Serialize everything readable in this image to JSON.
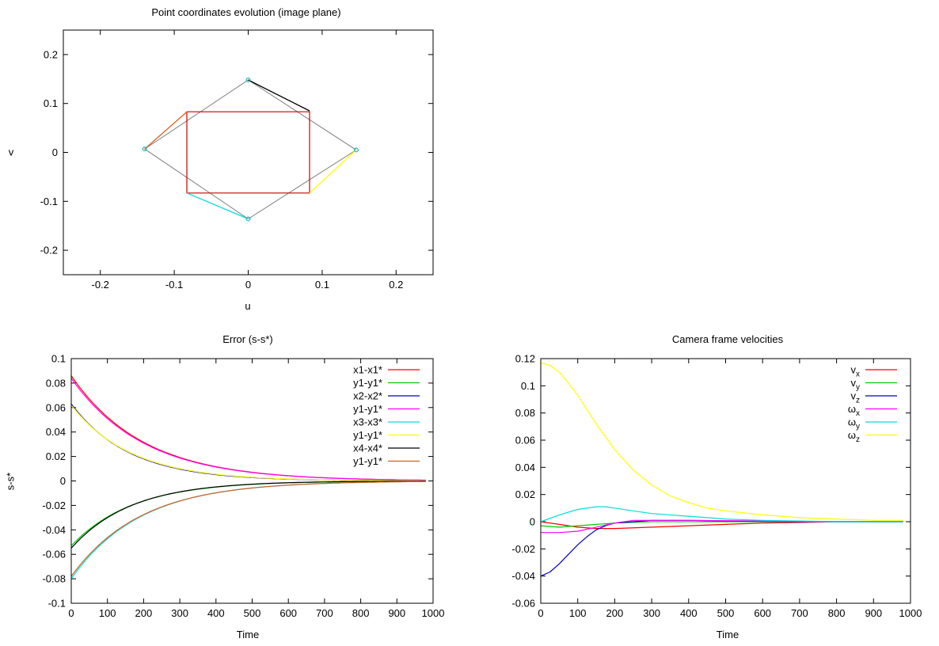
{
  "chart_data": [
    {
      "id": "image-plane",
      "type": "line",
      "title": "Point coordinates evolution (image plane)",
      "xlabel": "u",
      "ylabel": "v",
      "xlim": [
        -0.25,
        0.25
      ],
      "ylim": [
        -0.25,
        0.25
      ],
      "xticks": [
        -0.2,
        -0.1,
        0,
        0.1,
        0.2
      ],
      "yticks": [
        -0.2,
        -0.1,
        0,
        0.1,
        0.2
      ],
      "xtick_labels": [
        "-0.2",
        "-0.1",
        "0",
        "0.1",
        "0.2"
      ],
      "ytick_labels": [
        "-0.2",
        "-0.1",
        "0",
        "0.1",
        "0.2"
      ],
      "legend": "none",
      "initial_points": [
        [
          0.0,
          0.148
        ],
        [
          0.146,
          0.005
        ],
        [
          0.0,
          -0.136
        ],
        [
          -0.14,
          0.007
        ]
      ],
      "desired_points": [
        [
          -0.083,
          0.083
        ],
        [
          0.083,
          0.083
        ],
        [
          0.083,
          -0.083
        ],
        [
          -0.083,
          -0.083
        ]
      ],
      "colors": {
        "initial": "#808080",
        "desired": "#cc0000",
        "marker": "#22bbbb"
      },
      "trajectories": [
        {
          "color": "#000000",
          "points": [
            [
              0.0,
              0.148
            ],
            [
              0.083,
              0.085
            ]
          ]
        },
        {
          "color": "#ffff00",
          "points": [
            [
              0.146,
              0.005
            ],
            [
              0.083,
              -0.083
            ]
          ]
        },
        {
          "color": "#00dddd",
          "points": [
            [
              0.0,
              -0.136
            ],
            [
              -0.083,
              -0.083
            ]
          ]
        },
        {
          "color": "#e06020",
          "points": [
            [
              -0.14,
              0.007
            ],
            [
              -0.083,
              0.083
            ]
          ]
        }
      ]
    },
    {
      "id": "error",
      "type": "line",
      "title": "Error (s-s*)",
      "xlabel": "Time",
      "ylabel": "s-s*",
      "xlim": [
        0,
        1000
      ],
      "ylim": [
        -0.1,
        0.1
      ],
      "xticks": [
        0,
        100,
        200,
        300,
        400,
        500,
        600,
        700,
        800,
        900,
        1000
      ],
      "yticks": [
        -0.1,
        -0.08,
        -0.06,
        -0.04,
        -0.02,
        0,
        0.02,
        0.04,
        0.06,
        0.08,
        0.1
      ],
      "xtick_labels": [
        "0",
        "100",
        "200",
        "300",
        "400",
        "500",
        "600",
        "700",
        "800",
        "900",
        "1000"
      ],
      "ytick_labels": [
        "-0.1",
        "-0.08",
        "-0.06",
        "-0.04",
        "-0.02",
        "0",
        "0.02",
        "0.04",
        "0.06",
        "0.08",
        "0.1"
      ],
      "legend": "top-right",
      "t_end": 980,
      "series": [
        {
          "name": "x1-x1*",
          "color": "#ff0000",
          "v0": 0.086,
          "tau": 200
        },
        {
          "name": "y1-y1*",
          "color": "#00cc00",
          "v0": -0.053,
          "tau": 170
        },
        {
          "name": "x2-x2*",
          "color": "#0000cc",
          "v0": 0.063,
          "tau": 160
        },
        {
          "name": "y1-y1*",
          "color": "#ff00ff",
          "v0": 0.084,
          "tau": 200
        },
        {
          "name": "x3-x3*",
          "color": "#00dddd",
          "v0": -0.08,
          "tau": 190
        },
        {
          "name": "y1-y1*",
          "color": "#ffff00",
          "v0": 0.062,
          "tau": 165
        },
        {
          "name": "x4-x4*",
          "color": "#000000",
          "v0": -0.055,
          "tau": 165
        },
        {
          "name": "y1-y1*",
          "color": "#d06020",
          "v0": -0.078,
          "tau": 192
        }
      ]
    },
    {
      "id": "velocities",
      "type": "line",
      "title": "Camera frame velocities",
      "xlabel": "Time",
      "ylabel": "",
      "xlim": [
        0,
        1000
      ],
      "ylim": [
        -0.06,
        0.12
      ],
      "xticks": [
        0,
        100,
        200,
        300,
        400,
        500,
        600,
        700,
        800,
        900,
        1000
      ],
      "yticks": [
        -0.06,
        -0.04,
        -0.02,
        0,
        0.02,
        0.04,
        0.06,
        0.08,
        0.1,
        0.12
      ],
      "xtick_labels": [
        "0",
        "100",
        "200",
        "300",
        "400",
        "500",
        "600",
        "700",
        "800",
        "900",
        "1000"
      ],
      "ytick_labels": [
        "-0.06",
        "-0.04",
        "-0.02",
        "0",
        "0.02",
        "0.04",
        "0.06",
        "0.08",
        "0.1",
        "0.12"
      ],
      "legend": "top-right",
      "series": [
        {
          "name": "v",
          "sub": "x",
          "color": "#ff0000",
          "x": [
            0,
            50,
            100,
            150,
            200,
            300,
            400,
            500,
            600,
            700,
            800,
            980
          ],
          "y": [
            0.0,
            -0.002,
            -0.004,
            -0.005,
            -0.005,
            -0.004,
            -0.003,
            -0.002,
            -0.001,
            -0.0005,
            0.0,
            0.0
          ]
        },
        {
          "name": "v",
          "sub": "y",
          "color": "#00cc00",
          "x": [
            0,
            50,
            100,
            150,
            200,
            300,
            400,
            600,
            800,
            980
          ],
          "y": [
            -0.003,
            -0.004,
            -0.003,
            -0.002,
            -0.001,
            0.0,
            0.0,
            0.0,
            0.0,
            0.0
          ]
        },
        {
          "name": "v",
          "sub": "z",
          "color": "#0000cc",
          "x": [
            0,
            25,
            50,
            75,
            100,
            125,
            150,
            175,
            200,
            250,
            300,
            400,
            500,
            700,
            980
          ],
          "y": [
            -0.04,
            -0.037,
            -0.031,
            -0.024,
            -0.017,
            -0.011,
            -0.006,
            -0.003,
            -0.001,
            0.0,
            0.001,
            0.001,
            0.0005,
            0.0,
            0.0
          ]
        },
        {
          "name": "ω",
          "sub": "x",
          "color": "#ff00ff",
          "x": [
            0,
            50,
            100,
            150,
            200,
            250,
            300,
            400,
            600,
            800,
            980
          ],
          "y": [
            -0.008,
            -0.008,
            -0.007,
            -0.004,
            -0.001,
            0.001,
            0.001,
            0.001,
            0.0005,
            0.0,
            0.0
          ]
        },
        {
          "name": "ω",
          "sub": "y",
          "color": "#00dddd",
          "x": [
            0,
            50,
            100,
            150,
            175,
            200,
            250,
            300,
            400,
            500,
            600,
            700,
            800,
            900,
            980
          ],
          "y": [
            0.0,
            0.005,
            0.009,
            0.011,
            0.011,
            0.01,
            0.008,
            0.006,
            0.004,
            0.002,
            0.001,
            0.0005,
            0.0,
            0.0,
            0.0
          ]
        },
        {
          "name": "ω",
          "sub": "z",
          "color": "#ffff00",
          "x": [
            0,
            25,
            50,
            75,
            100,
            150,
            200,
            250,
            300,
            350,
            400,
            450,
            500,
            600,
            700,
            800,
            900,
            980
          ],
          "y": [
            0.117,
            0.115,
            0.11,
            0.102,
            0.093,
            0.072,
            0.053,
            0.038,
            0.027,
            0.019,
            0.014,
            0.01,
            0.008,
            0.005,
            0.003,
            0.002,
            0.001,
            0.001
          ]
        }
      ]
    }
  ]
}
